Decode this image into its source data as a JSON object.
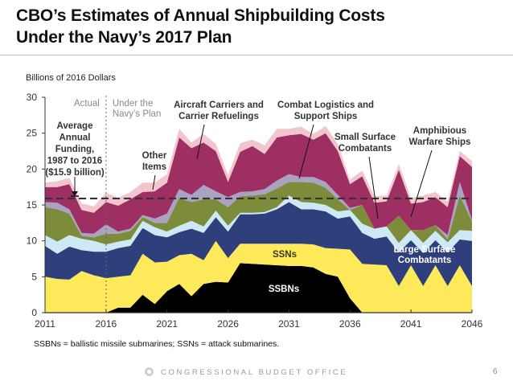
{
  "slide": {
    "title_line1": "CBO’s Estimates of Annual Shipbuilding Costs",
    "title_line2": "Under the Navy’s 2017 Plan",
    "note": "SSBNs = ballistic missile submarines; SSNs = attack submarines.",
    "footer": "CONGRESSIONAL BUDGET OFFICE",
    "page_number": "6"
  },
  "chart_data": {
    "type": "area",
    "stacked": true,
    "title": "CBO’s Estimates of Annual Shipbuilding Costs Under the Navy’s 2017 Plan",
    "ylabel": "Billions of 2016 Dollars",
    "xlabel": "",
    "ylim": [
      0,
      30
    ],
    "xlim": [
      2011,
      2046
    ],
    "y_ticks": [
      "0",
      "5",
      "10",
      "15",
      "20",
      "25",
      "30"
    ],
    "x_ticks": [
      "2011",
      "2016",
      "2021",
      "2026",
      "2031",
      "2036",
      "2041",
      "2046"
    ],
    "x": [
      2011,
      2012,
      2013,
      2014,
      2015,
      2016,
      2017,
      2018,
      2019,
      2020,
      2021,
      2022,
      2023,
      2024,
      2025,
      2026,
      2027,
      2028,
      2029,
      2030,
      2031,
      2032,
      2033,
      2034,
      2035,
      2036,
      2037,
      2038,
      2039,
      2040,
      2041,
      2042,
      2043,
      2044,
      2045,
      2046
    ],
    "series": [
      {
        "name": "SSBNs",
        "color": "#000000",
        "values": [
          0,
          0,
          0,
          0,
          0,
          0,
          0.7,
          0.7,
          2.5,
          1.2,
          3.0,
          4.0,
          2.3,
          4.0,
          4.3,
          4.2,
          6.9,
          6.8,
          6.7,
          6.6,
          6.5,
          6.5,
          6.3,
          5.4,
          5.0,
          2.0,
          0,
          0,
          0,
          0,
          0,
          0,
          0,
          0,
          0,
          0
        ]
      },
      {
        "name": "SSNs",
        "color": "#fde95a",
        "values": [
          5.0,
          4.7,
          4.6,
          5.8,
          5.2,
          4.8,
          4.3,
          4.5,
          5.7,
          5.8,
          4.1,
          4.0,
          5.9,
          3.3,
          5.7,
          3.4,
          2.7,
          2.8,
          2.9,
          3.0,
          3.1,
          3.1,
          3.2,
          3.6,
          3.9,
          6.8,
          6.8,
          6.7,
          6.6,
          3.7,
          6.6,
          3.7,
          6.6,
          3.7,
          6.6,
          3.7
        ]
      },
      {
        "name": "Large Surface Combatants",
        "color": "#2e3f7c",
        "values": [
          4.3,
          3.5,
          4.6,
          2.9,
          3.3,
          3.7,
          4.0,
          4.1,
          3.6,
          3.8,
          3.4,
          3.2,
          3.5,
          3.8,
          3.3,
          3.7,
          4.1,
          4.1,
          4.2,
          4.8,
          5.8,
          4.8,
          4.9,
          5.1,
          4.2,
          4.6,
          4.3,
          3.6,
          4.0,
          4.7,
          3.5,
          4.6,
          3.5,
          4.7,
          3.6,
          6.3
        ]
      },
      {
        "name": "Small Surface Combatants",
        "color": "#cde9f6",
        "values": [
          1.5,
          1.7,
          1.6,
          1.6,
          1.5,
          1.0,
          0.9,
          0.9,
          1.0,
          1.1,
          0.8,
          0.9,
          1.1,
          0.9,
          0.9,
          0.8,
          0.2,
          0.2,
          0.2,
          0.3,
          0.9,
          1.0,
          0.9,
          0.9,
          1.0,
          0.9,
          1.3,
          1.4,
          1.4,
          1.3,
          1.4,
          1.4,
          1.3,
          1.4,
          1.3,
          1.4
        ]
      },
      {
        "name": "Amphibious Warfare Ships",
        "color": "#7d8c3b",
        "values": [
          3.9,
          4.5,
          3.0,
          0.4,
          0.5,
          1.5,
          1.1,
          1.2,
          0.5,
          0.6,
          1.2,
          3.9,
          2.6,
          3.8,
          1.6,
          2.6,
          2.3,
          2.4,
          2.5,
          2.6,
          1.9,
          2.8,
          2.8,
          2.4,
          1.7,
          0,
          2.6,
          0,
          0,
          3.8,
          0,
          1.8,
          0.8,
          0.4,
          4.8,
          1.3
        ]
      },
      {
        "name": "Combat Logistics and Support Ships",
        "color": "#a9a2c2",
        "values": [
          0.7,
          0.9,
          0.6,
          0.4,
          0.5,
          1.3,
          0.3,
          0.3,
          0.3,
          0.6,
          1.3,
          1.2,
          1.0,
          2.0,
          1.1,
          1.4,
          0.6,
          0.6,
          0.7,
          1.1,
          1.1,
          0.7,
          0.8,
          0.8,
          0.6,
          0.3,
          0,
          0,
          0,
          0,
          0,
          0,
          0,
          0.6,
          1.9,
          0.2
        ]
      },
      {
        "name": "Aircraft Carriers and Carrier Refuelings",
        "color": "#9e2f62",
        "values": [
          2.1,
          2.2,
          3.5,
          3.2,
          2.9,
          3.1,
          3.6,
          4.1,
          3.2,
          3.8,
          4.3,
          7.2,
          6.5,
          5.9,
          5.6,
          2.1,
          5.6,
          6.3,
          4.9,
          6.0,
          5.4,
          6.0,
          5.2,
          6.8,
          6.1,
          3.3,
          4.0,
          3.6,
          3.5,
          6.4,
          3.7,
          3.9,
          3.9,
          3.9,
          3.6,
          7.4
        ]
      },
      {
        "name": "Other Items",
        "color": "#f2c6cc",
        "values": [
          0.6,
          0.8,
          0.9,
          0.9,
          0.9,
          1.3,
          1.1,
          1.0,
          1.3,
          1.2,
          1.2,
          1.2,
          0.8,
          1.2,
          1.0,
          1.0,
          1.2,
          0.9,
          1.2,
          1.2,
          0.9,
          1.0,
          0.8,
          1.0,
          1.0,
          0.6,
          0.8,
          0.9,
          0.8,
          0.8,
          0.8,
          0.9,
          0.7,
          0.8,
          0.7,
          0.8
        ]
      }
    ],
    "reference_line": {
      "label": "Average Annual Funding, 1987 to 2016 ($15.9 billion)",
      "value": 15.9,
      "style": "dashed",
      "color": "#333333"
    },
    "divider": {
      "year": 2016,
      "left_label": "Actual",
      "right_label": "Under the Navy’s Plan",
      "style": "dotted"
    },
    "annotations": [
      {
        "id": "avg",
        "lines": [
          "Average",
          "Annual",
          "Funding,",
          "1987 to 2016",
          "($15.9 billion)"
        ]
      },
      {
        "id": "other",
        "lines": [
          "Other",
          "Items"
        ]
      },
      {
        "id": "carriers",
        "lines": [
          "Aircraft Carriers and",
          "Carrier Refuelings"
        ]
      },
      {
        "id": "logistics",
        "lines": [
          "Combat Logistics and",
          "Support Ships"
        ]
      },
      {
        "id": "small",
        "lines": [
          "Small Surface",
          "Combatants"
        ]
      },
      {
        "id": "amphib",
        "lines": [
          "Amphibious",
          "Warfare Ships"
        ]
      },
      {
        "id": "large",
        "lines": [
          "Large Surface",
          "Combatants"
        ]
      },
      {
        "id": "ssns",
        "lines": [
          "SSNs"
        ]
      },
      {
        "id": "ssbns",
        "lines": [
          "SSBNs"
        ]
      }
    ],
    "legend": "none (inline labels)",
    "grid": false
  }
}
